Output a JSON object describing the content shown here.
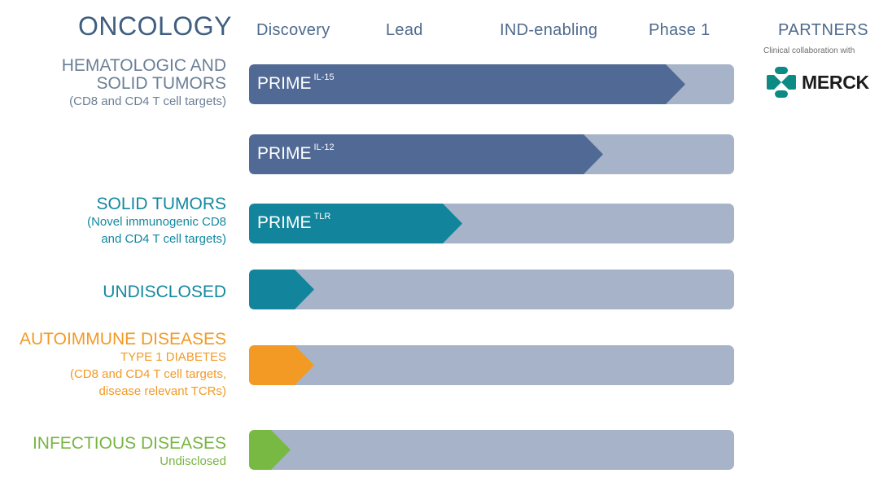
{
  "header": {
    "area": "ONCOLOGY",
    "stages": [
      "Discovery",
      "Lead",
      "IND-enabling",
      "Phase 1"
    ],
    "partners": "PARTNERS"
  },
  "partner_info": {
    "collab_text": "Clinical collaboration with",
    "partner_name": "MERCK"
  },
  "rows": {
    "heme_title1": "HEMATOLOGIC AND",
    "heme_title2": "SOLID TUMORS",
    "heme_sub": "(CD8 and CD4 T cell targets)",
    "solid_title": "SOLID TUMORS",
    "solid_sub1": "(Novel immunogenic CD8",
    "solid_sub2": "and CD4 T cell targets)",
    "undisclosed_title": "UNDISCLOSED",
    "auto_title": "AUTOIMMUNE DISEASES",
    "auto_sub1": "TYPE 1 DIABETES",
    "auto_sub2": "(CD8 and CD4 T cell targets,",
    "auto_sub3": "disease relevant TCRs)",
    "infect_title": "INFECTIOUS DISEASES",
    "infect_sub": "Undisclosed"
  },
  "colors": {
    "track": "#a6b3c8",
    "navy": "#506a95",
    "teal": "#12859c",
    "orange": "#f39a25",
    "green": "#78b943"
  },
  "chart_data": {
    "type": "bar",
    "stages": [
      "Discovery",
      "Lead",
      "IND-enabling",
      "Phase 1"
    ],
    "programs": [
      {
        "name": "PRIME",
        "sup": "IL-15",
        "progress": 0.9,
        "color": "navy"
      },
      {
        "name": "PRIME",
        "sup": "IL-12",
        "progress": 0.73,
        "color": "navy"
      },
      {
        "name": "PRIME",
        "sup": "TLR",
        "progress": 0.44,
        "color": "teal"
      },
      {
        "name": "",
        "sup": "",
        "progress": 0.135,
        "color": "teal"
      },
      {
        "name": "",
        "sup": "",
        "progress": 0.135,
        "color": "orange"
      },
      {
        "name": "",
        "sup": "",
        "progress": 0.085,
        "color": "green"
      }
    ]
  }
}
